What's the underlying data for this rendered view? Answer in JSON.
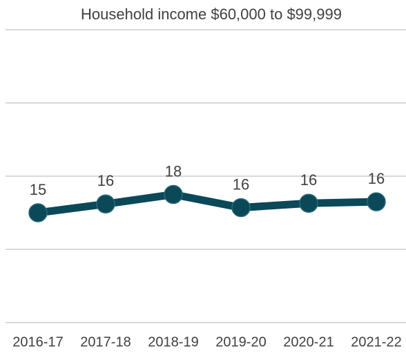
{
  "chart_data": {
    "type": "line",
    "title": "Household income $60,000 to $99,999",
    "categories": [
      "2016-17",
      "2017-18",
      "2018-19",
      "2019-20",
      "2020-21",
      "2021-22"
    ],
    "series": [
      {
        "name": "Household income $60,000 to $99,999",
        "color": "#0b4858",
        "values": [
          15.0,
          16.2,
          17.5,
          15.7,
          16.3,
          16.5
        ],
        "value_labels": [
          "15",
          "16",
          "18",
          "16",
          "16",
          "16"
        ]
      }
    ],
    "ylim": [
      0,
      40
    ],
    "yticks": [
      0,
      10,
      20,
      30,
      40
    ],
    "grid": true
  }
}
